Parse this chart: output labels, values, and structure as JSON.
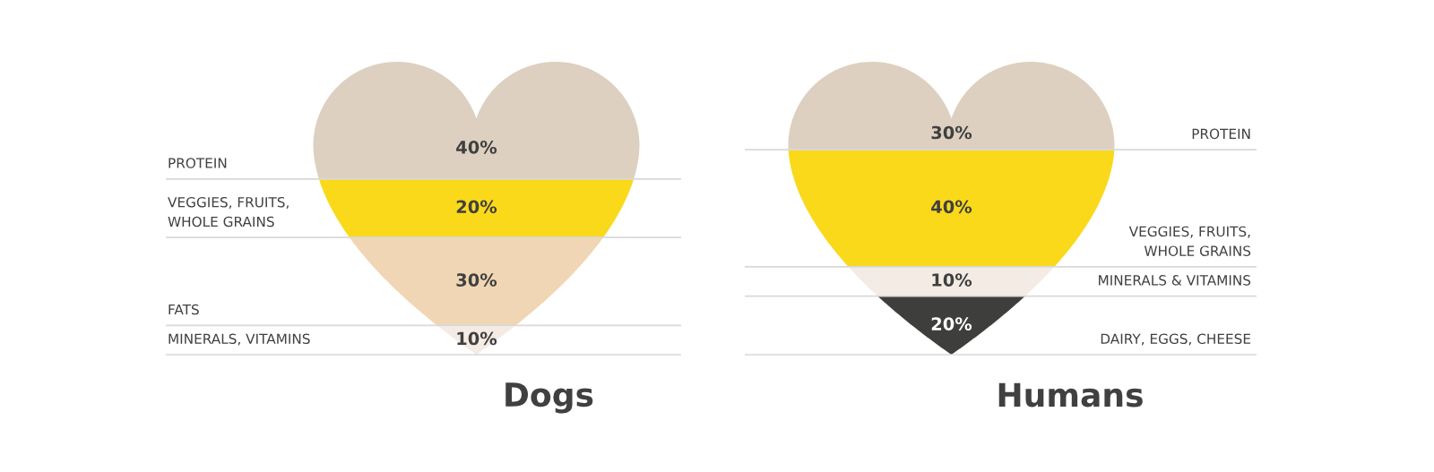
{
  "chart_data": [
    {
      "type": "other",
      "title": "Dogs",
      "categories": [
        "PROTEIN",
        "VEGGIES, FRUITS,\nWHOLE GRAINS",
        "FATS",
        "MINERALS, VITAMINS"
      ],
      "values": [
        40,
        20,
        30,
        10
      ],
      "value_labels": [
        "40%",
        "20%",
        "30%",
        "10%"
      ],
      "colors": [
        "#ddd0c0",
        "#fad91a",
        "#f0d6b4",
        "#f4ebe4"
      ]
    },
    {
      "type": "other",
      "title": "Humans",
      "categories": [
        "PROTEIN",
        "VEGGIES, FRUITS,\nWHOLE GRAINS",
        "MINERALS & VITAMINS",
        "DAIRY, EGGS, CHEESE"
      ],
      "values": [
        30,
        40,
        10,
        20
      ],
      "value_labels": [
        "30%",
        "40%",
        "10%",
        "20%"
      ],
      "colors": [
        "#ddd0c0",
        "#fad91a",
        "#f4ebe4",
        "#3e3f3d"
      ]
    }
  ]
}
